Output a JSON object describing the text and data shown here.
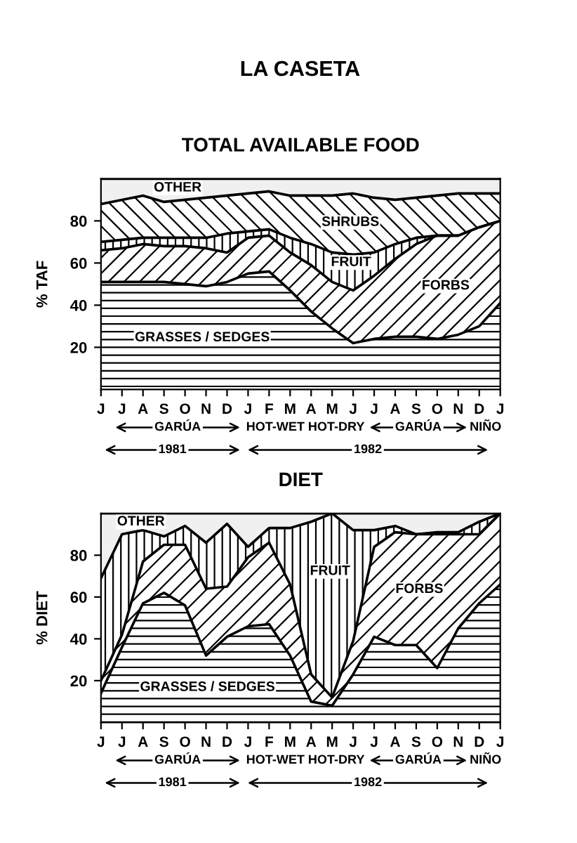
{
  "chart_data": [
    {
      "type": "area",
      "stacked": true,
      "title": "LA CASETA",
      "subtitle": "TOTAL AVAILABLE FOOD",
      "ylabel": "% TAF",
      "categories": [
        "J",
        "J",
        "A",
        "S",
        "O",
        "N",
        "D",
        "J",
        "F",
        "M",
        "A",
        "M",
        "J",
        "J",
        "A",
        "S",
        "O",
        "N",
        "D",
        "J"
      ],
      "series": [
        {
          "name": "GRASSES / SEDGES",
          "color": "#000000",
          "values": [
            51,
            51,
            51,
            51,
            50,
            49,
            51,
            55,
            56,
            47,
            37,
            29,
            22,
            24,
            25,
            25,
            24,
            26,
            30,
            41
          ]
        },
        {
          "name": "FORBS",
          "color": "#000000",
          "values": [
            15,
            16,
            18,
            17,
            18,
            18,
            14,
            17,
            17,
            18,
            22,
            22,
            25,
            30,
            37,
            44,
            49,
            47,
            47,
            39
          ]
        },
        {
          "name": "FRUIT",
          "color": "#000000",
          "values": [
            4,
            4,
            3,
            4,
            4,
            5,
            9,
            3,
            3,
            7,
            10,
            14,
            17,
            11,
            7,
            3,
            0,
            0,
            0,
            0
          ]
        },
        {
          "name": "SHRUBS",
          "color": "#000000",
          "values": [
            18,
            19,
            20,
            17,
            18,
            19,
            18,
            18,
            18,
            20,
            23,
            27,
            29,
            26,
            21,
            19,
            19,
            20,
            16,
            13
          ]
        },
        {
          "name": "OTHER",
          "color": "#f0f0f0",
          "values": [
            12,
            10,
            8,
            11,
            10,
            9,
            8,
            7,
            6,
            8,
            8,
            8,
            7,
            9,
            10,
            9,
            8,
            7,
            7,
            7
          ]
        }
      ],
      "ylim": [
        0,
        100
      ],
      "yticks": [
        20,
        40,
        60,
        80
      ],
      "grid": false,
      "legend": false,
      "annotations": [
        "GARÚA",
        "HOT-WET",
        "HOT-DRY",
        "GARÚA",
        "NIÑO",
        "1981",
        "1982"
      ]
    },
    {
      "type": "area",
      "stacked": true,
      "title": "DIET",
      "ylabel": "% DIET",
      "categories": [
        "J",
        "J",
        "A",
        "S",
        "O",
        "N",
        "D",
        "J",
        "F",
        "M",
        "A",
        "M",
        "J",
        "J",
        "A",
        "S",
        "O",
        "N",
        "D",
        "J"
      ],
      "series": [
        {
          "name": "GRASSES / SEDGES",
          "color": "#000000",
          "values": [
            14,
            36,
            57,
            62,
            56,
            32,
            41,
            46,
            47,
            32,
            10,
            8,
            23,
            41,
            37,
            37,
            26,
            45,
            57,
            66
          ]
        },
        {
          "name": "FORBS",
          "color": "#000000",
          "values": [
            6,
            6,
            20,
            23,
            29,
            32,
            24,
            33,
            39,
            34,
            13,
            4,
            16,
            43,
            54,
            53,
            64,
            45,
            33,
            34
          ]
        },
        {
          "name": "FRUIT",
          "color": "#000000",
          "values": [
            49,
            48,
            15,
            4,
            9,
            22,
            30,
            5,
            7,
            27,
            73,
            88,
            53,
            8,
            3,
            0,
            1,
            1,
            6,
            0
          ]
        },
        {
          "name": "OTHER",
          "color": "#f0f0f0",
          "values": [
            31,
            10,
            8,
            11,
            6,
            14,
            5,
            16,
            7,
            7,
            4,
            0,
            8,
            8,
            6,
            10,
            9,
            9,
            4,
            0
          ]
        }
      ],
      "ylim": [
        0,
        100
      ],
      "yticks": [
        20,
        40,
        60,
        80
      ],
      "grid": false,
      "legend": false,
      "annotations": [
        "GARÚA",
        "HOT-WET",
        "HOT-DRY",
        "GARÚA",
        "NIÑO",
        "1981",
        "1982"
      ]
    }
  ]
}
